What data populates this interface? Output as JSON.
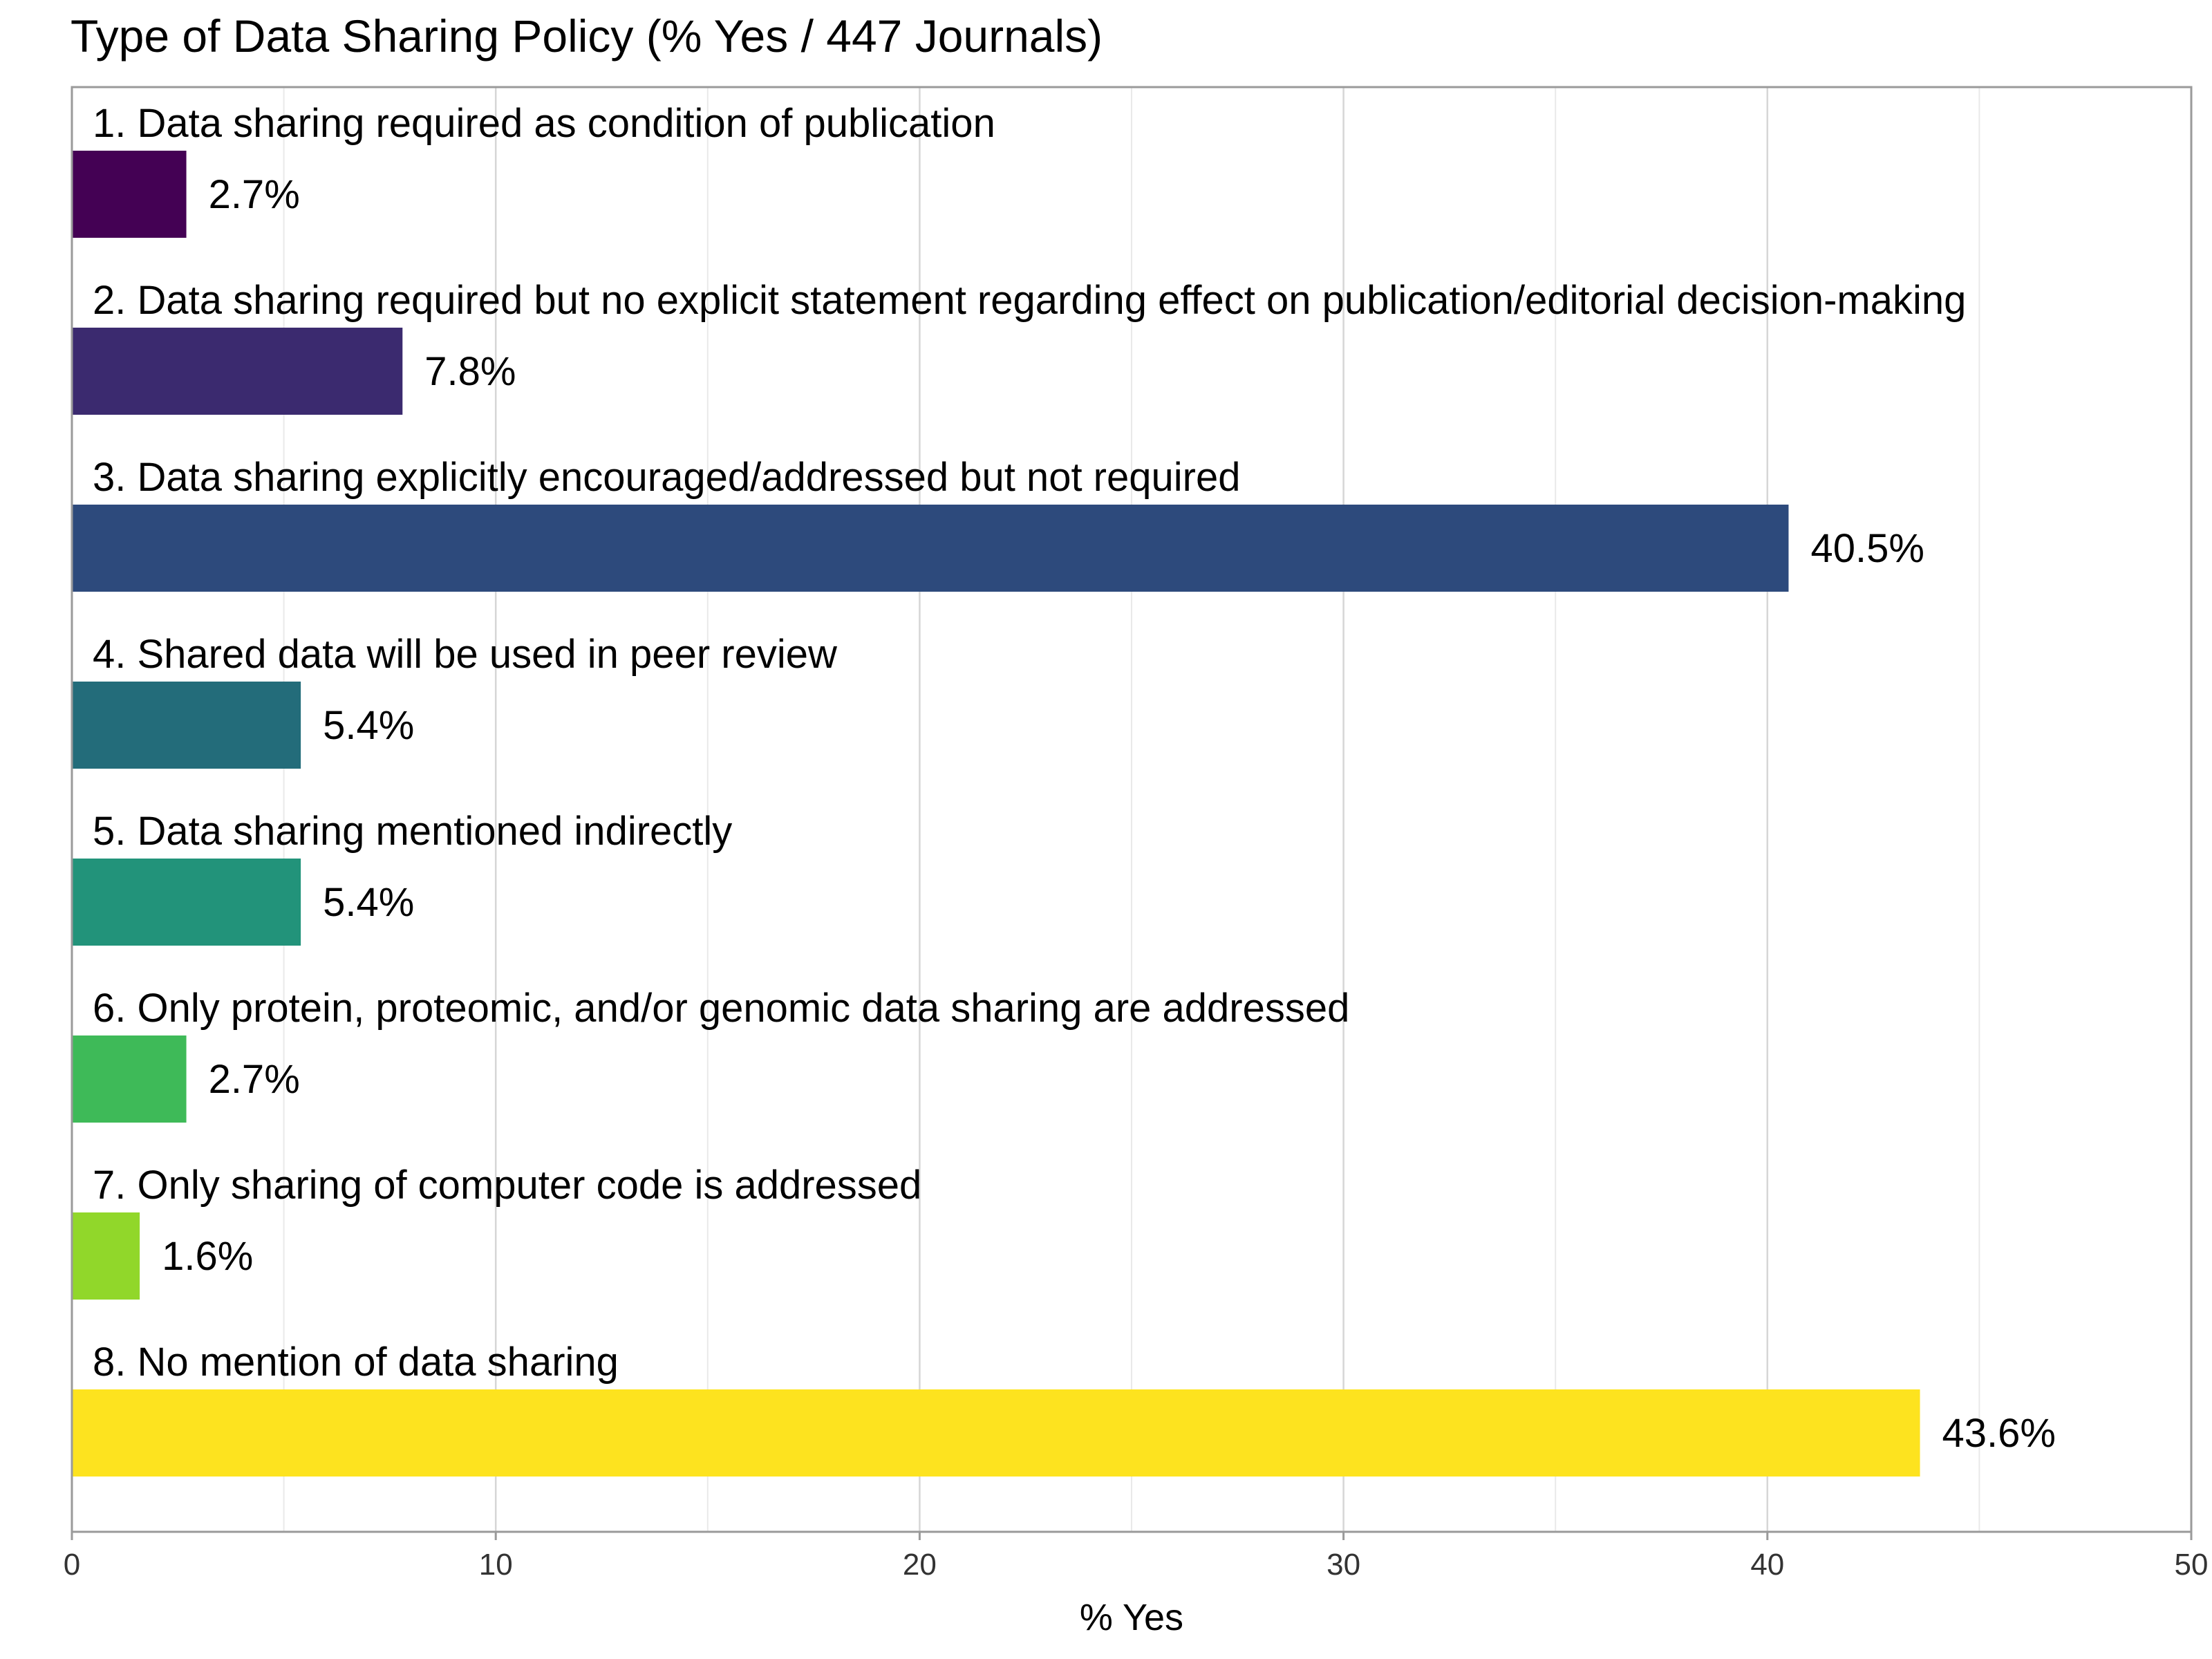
{
  "chart_data": {
    "type": "bar",
    "orientation": "horizontal",
    "title": "Type of Data Sharing Policy (% Yes / 447 Journals)",
    "xlabel": "% Yes",
    "ylabel": "",
    "xlim": [
      0,
      50
    ],
    "xticks": [
      "0",
      "10",
      "20",
      "30",
      "40",
      "50"
    ],
    "grid": true,
    "categories": [
      "1. Data sharing required as condition of publication",
      "2. Data sharing required but no explicit statement regarding effect on publication/editorial decision-making",
      "3. Data sharing explicitly encouraged/addressed but not required",
      "4. Shared data will be used in peer review",
      "5. Data sharing mentioned indirectly",
      "6. Only protein, proteomic, and/or genomic data sharing are addressed",
      "7. Only sharing of computer code is addressed",
      "8. No mention of data sharing"
    ],
    "values": [
      2.7,
      7.8,
      40.5,
      5.4,
      5.4,
      2.7,
      1.6,
      43.6
    ],
    "value_labels": [
      "2.7%",
      "7.8%",
      "40.5%",
      "5.4%",
      "5.4%",
      "2.7%",
      "1.6%",
      "43.6%"
    ],
    "colors": [
      "#440154",
      "#3B2A6F",
      "#2D4A7C",
      "#236C7A",
      "#22937A",
      "#3EBA58",
      "#91D72A",
      "#FDE31F"
    ]
  }
}
